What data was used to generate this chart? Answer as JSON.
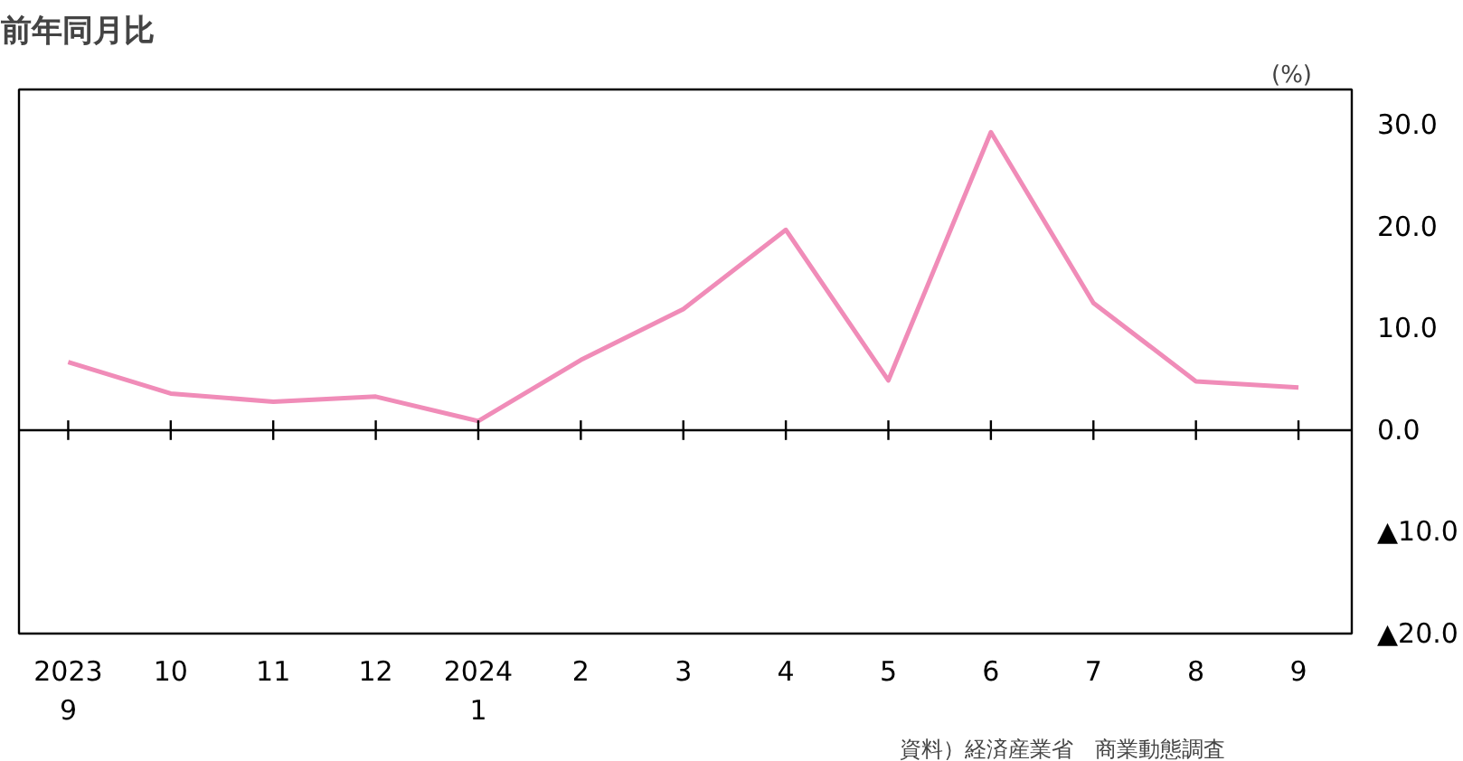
{
  "chart_data": {
    "type": "line",
    "title": "前年同月比",
    "ylabel": "(%)",
    "categories": [
      "2023\n9",
      "10",
      "11",
      "12",
      "2024\n1",
      "2",
      "3",
      "4",
      "5",
      "6",
      "7",
      "8",
      "9"
    ],
    "series": [
      {
        "color": "#f08cb8",
        "values": [
          6.7,
          3.6,
          2.8,
          3.3,
          0.9,
          6.9,
          11.9,
          19.7,
          4.9,
          29.3,
          12.5,
          4.8,
          4.2
        ]
      }
    ],
    "ylim": [
      -20,
      33.5
    ],
    "yticks": [
      {
        "value": 30,
        "label": "30.0"
      },
      {
        "value": 20,
        "label": "20.0"
      },
      {
        "value": 10,
        "label": "10.0"
      },
      {
        "value": 0,
        "label": "0.0"
      },
      {
        "value": -10,
        "label": "▲10.0"
      },
      {
        "value": -20,
        "label": "▲20.0"
      }
    ],
    "ref_lines": [
      {
        "axis": "y",
        "value": 0,
        "color": "#000000"
      }
    ],
    "annotations": [
      "資料）経済産業省　商業動態調査"
    ],
    "grid": false,
    "marker": "none",
    "line_style": "solid"
  }
}
